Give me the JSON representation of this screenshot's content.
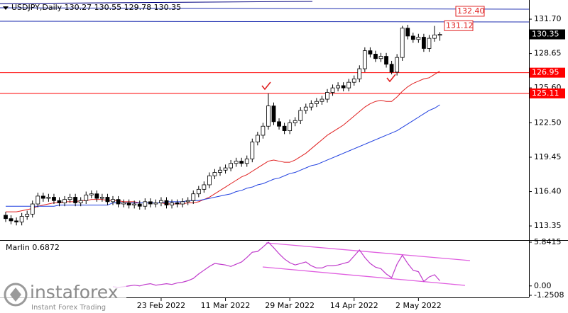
{
  "chart_data": [
    {
      "type": "candlestick",
      "title": "USDJPY,Daily 130.27 130.55 129.78 130.35",
      "categories": [
        null,
        null,
        null,
        null,
        null,
        null,
        null,
        null,
        null,
        null,
        null,
        null,
        null,
        null,
        null,
        null,
        null,
        null,
        null,
        null,
        null,
        null,
        null,
        null,
        null,
        null,
        null,
        null,
        null,
        "23 Feb 2022",
        null,
        null,
        null,
        null,
        null,
        null,
        null,
        null,
        null,
        null,
        null,
        "11 Mar 2022",
        null,
        null,
        null,
        null,
        null,
        null,
        null,
        null,
        null,
        null,
        null,
        "29 Mar 2022",
        null,
        null,
        null,
        null,
        null,
        null,
        null,
        null,
        null,
        null,
        null,
        "14 Apr 2022",
        null,
        null,
        null,
        null,
        null,
        null,
        null,
        null,
        null,
        null,
        null,
        "2 May 2022",
        null,
        null,
        null,
        null
      ],
      "open": [
        114.3,
        114.0,
        113.8,
        113.7,
        114.2,
        114.4,
        115.3,
        116.0,
        115.8,
        115.9,
        115.6,
        115.4,
        115.7,
        115.9,
        115.4,
        115.6,
        116.1,
        116.2,
        115.8,
        115.9,
        115.5,
        115.7,
        115.3,
        115.4,
        115.2,
        115.3,
        115.1,
        115.5,
        115.3,
        115.4,
        115.6,
        115.2,
        115.4,
        115.3,
        115.5,
        115.6,
        116.2,
        116.6,
        117.0,
        117.8,
        118.1,
        118.3,
        118.5,
        118.9,
        119.1,
        118.9,
        119.3,
        120.8,
        121.4,
        122.2,
        124.0,
        122.6,
        122.2,
        121.8,
        122.5,
        122.7,
        123.6,
        123.9,
        124.2,
        124.4,
        124.6,
        125.2,
        125.6,
        125.8,
        125.6,
        126.1,
        126.4,
        127.3,
        128.9,
        128.6,
        128.2,
        128.4,
        127.7,
        127.0,
        128.3,
        130.9,
        130.2,
        129.9,
        130.1,
        129.1,
        130.0,
        130.27
      ],
      "high": [
        114.6,
        114.3,
        114.1,
        114.5,
        114.7,
        115.6,
        116.3,
        116.3,
        116.2,
        116.2,
        115.9,
        116.0,
        116.2,
        116.2,
        115.9,
        116.4,
        116.5,
        116.5,
        116.2,
        116.2,
        116.0,
        116.0,
        115.7,
        115.7,
        115.6,
        115.6,
        115.8,
        115.8,
        115.7,
        115.9,
        115.9,
        115.7,
        115.7,
        115.8,
        115.9,
        116.5,
        116.9,
        117.3,
        118.1,
        118.4,
        118.6,
        118.8,
        119.2,
        119.4,
        119.4,
        119.6,
        121.1,
        121.7,
        122.5,
        125.1,
        124.3,
        122.9,
        122.5,
        122.8,
        123.0,
        123.9,
        124.2,
        124.5,
        124.7,
        124.9,
        125.5,
        125.9,
        126.1,
        126.1,
        126.4,
        126.7,
        127.6,
        129.2,
        129.2,
        128.9,
        128.7,
        128.7,
        128.0,
        128.6,
        131.1,
        131.2,
        130.5,
        130.4,
        130.4,
        130.3,
        131.1,
        130.55
      ],
      "low": [
        113.7,
        113.5,
        113.4,
        113.4,
        113.9,
        114.1,
        115.0,
        115.5,
        115.5,
        115.3,
        115.1,
        115.1,
        115.4,
        115.1,
        115.1,
        115.3,
        115.8,
        115.5,
        115.5,
        115.2,
        115.2,
        115.0,
        115.0,
        114.9,
        114.9,
        114.8,
        114.8,
        115.0,
        115.0,
        115.1,
        114.9,
        114.9,
        115.0,
        115.0,
        115.2,
        115.3,
        115.9,
        116.3,
        116.7,
        117.5,
        117.8,
        118.0,
        118.2,
        118.6,
        118.6,
        118.6,
        119.0,
        120.5,
        121.1,
        121.9,
        122.3,
        121.9,
        121.5,
        121.5,
        122.2,
        122.4,
        123.3,
        123.6,
        123.9,
        124.1,
        124.3,
        124.9,
        125.3,
        125.3,
        125.3,
        125.8,
        126.1,
        127.0,
        128.3,
        127.9,
        127.9,
        127.4,
        126.8,
        126.7,
        128.0,
        129.9,
        129.6,
        129.6,
        128.8,
        128.8,
        129.7,
        129.78
      ],
      "close": [
        114.0,
        113.8,
        113.7,
        114.2,
        114.4,
        115.3,
        116.0,
        115.8,
        115.9,
        115.6,
        115.4,
        115.7,
        115.9,
        115.4,
        115.6,
        116.1,
        116.2,
        115.8,
        115.9,
        115.5,
        115.7,
        115.3,
        115.4,
        115.2,
        115.3,
        115.1,
        115.5,
        115.3,
        115.4,
        115.6,
        115.2,
        115.4,
        115.3,
        115.5,
        115.6,
        116.2,
        116.6,
        117.0,
        117.8,
        118.1,
        118.3,
        118.5,
        118.9,
        119.1,
        118.9,
        119.3,
        120.8,
        121.4,
        122.2,
        124.0,
        122.6,
        122.2,
        121.8,
        122.5,
        122.7,
        123.6,
        123.9,
        124.2,
        124.4,
        124.6,
        125.2,
        125.6,
        125.8,
        125.6,
        126.1,
        126.4,
        127.3,
        128.9,
        128.6,
        128.2,
        128.4,
        127.7,
        127.0,
        128.3,
        130.9,
        130.2,
        129.9,
        130.1,
        129.1,
        130.0,
        130.3,
        130.35
      ],
      "overlays": [
        {
          "color": "#e02020",
          "values": [
            114.6,
            114.6,
            114.6,
            114.7,
            114.8,
            114.9,
            115.1,
            115.2,
            115.3,
            115.4,
            115.4,
            115.5,
            115.5,
            115.5,
            115.6,
            115.6,
            115.7,
            115.7,
            115.7,
            115.6,
            115.6,
            115.6,
            115.5,
            115.5,
            115.5,
            115.4,
            115.4,
            115.4,
            115.4,
            115.4,
            115.3,
            115.3,
            115.3,
            115.3,
            115.4,
            115.4,
            115.5,
            115.7,
            115.9,
            116.2,
            116.5,
            116.8,
            117.1,
            117.4,
            117.7,
            117.9,
            118.2,
            118.5,
            118.8,
            119.1,
            119.2,
            119.1,
            119.0,
            119.0,
            119.2,
            119.5,
            119.8,
            120.2,
            120.6,
            121.0,
            121.4,
            121.7,
            122.0,
            122.3,
            122.7,
            123.1,
            123.5,
            123.9,
            124.2,
            124.4,
            124.5,
            124.4,
            124.4,
            124.8,
            125.3,
            125.7,
            126.0,
            126.2,
            126.4,
            126.5,
            126.8,
            127.1
          ]
        },
        {
          "color": "#1f3fe0",
          "values": [
            115.1,
            115.1,
            115.1,
            115.1,
            115.1,
            115.1,
            115.1,
            115.1,
            115.1,
            115.1,
            115.2,
            115.2,
            115.2,
            115.2,
            115.2,
            115.2,
            115.2,
            115.2,
            115.2,
            115.2,
            115.4,
            115.4,
            115.4,
            115.4,
            115.4,
            115.4,
            115.4,
            115.4,
            115.4,
            115.4,
            115.5,
            115.5,
            115.5,
            115.5,
            115.6,
            115.6,
            115.6,
            115.7,
            115.8,
            115.9,
            116.0,
            116.1,
            116.2,
            116.4,
            116.5,
            116.7,
            116.8,
            117.0,
            117.1,
            117.3,
            117.5,
            117.6,
            117.8,
            118.0,
            118.1,
            118.3,
            118.5,
            118.7,
            118.8,
            119.0,
            119.2,
            119.4,
            119.6,
            119.8,
            120.0,
            120.2,
            120.4,
            120.6,
            120.8,
            121.0,
            121.2,
            121.4,
            121.6,
            121.8,
            122.1,
            122.4,
            122.7,
            123.0,
            123.3,
            123.6,
            123.8,
            124.1
          ]
        }
      ],
      "ylim": [
        112.16,
        133.4
      ],
      "yticks": [
        {
          "value": 131.7,
          "label": "131.70"
        },
        128.65,
        {
          "value": 125.6,
          "label": "125.60"
        },
        {
          "value": 122.5,
          "label": "122.50"
        },
        119.45,
        {
          "value": 116.4,
          "label": "116.40"
        },
        113.35
      ],
      "hlines": [
        126.95,
        125.11
      ],
      "hline_color": "#ff0000",
      "trend_labels": [
        {
          "value": 132.4,
          "label": "132.40"
        },
        131.12
      ],
      "current_price": 130.35
    },
    {
      "type": "line",
      "title": "Marlin 0.6872",
      "color": "#c03ccc",
      "values": [
        null,
        null,
        null,
        null,
        null,
        null,
        null,
        null,
        null,
        null,
        null,
        null,
        null,
        null,
        null,
        null,
        null,
        null,
        null,
        null,
        -0.1,
        -0.2,
        -0.1,
        0.0,
        0.1,
        0.0,
        0.2,
        0.3,
        0.1,
        0.2,
        0.3,
        0.2,
        0.4,
        0.5,
        0.7,
        1.0,
        1.6,
        2.1,
        2.6,
        3.0,
        2.9,
        2.8,
        2.6,
        2.9,
        3.2,
        3.8,
        4.5,
        4.6,
        5.2,
        5.84,
        5.1,
        4.3,
        3.6,
        3.1,
        2.8,
        3.0,
        3.2,
        2.7,
        2.4,
        2.4,
        2.7,
        2.7,
        2.8,
        3.0,
        3.2,
        4.0,
        4.8,
        3.8,
        3.0,
        2.5,
        2.3,
        1.6,
        1.1,
        2.9,
        4.1,
        3.0,
        2.1,
        1.9,
        0.6,
        1.2,
        1.5,
        0.6872
      ],
      "ylim": [
        -1.2508,
        5.8415
      ],
      "yticks": [
        5.8415,
        {
          "value": 0,
          "label": "0.00"
        },
        -1.2508
      ]
    }
  ],
  "watermark": {
    "brand": "instaforex",
    "tagline": "Instant Forex Trading"
  }
}
